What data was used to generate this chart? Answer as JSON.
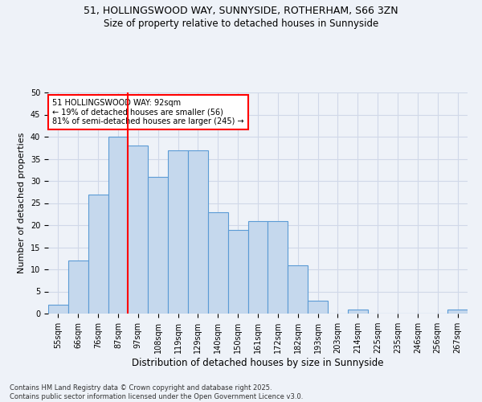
{
  "title_line1": "51, HOLLINGSWOOD WAY, SUNNYSIDE, ROTHERHAM, S66 3ZN",
  "title_line2": "Size of property relative to detached houses in Sunnyside",
  "xlabel": "Distribution of detached houses by size in Sunnyside",
  "ylabel": "Number of detached properties",
  "bin_labels": [
    "55sqm",
    "66sqm",
    "76sqm",
    "87sqm",
    "97sqm",
    "108sqm",
    "119sqm",
    "129sqm",
    "140sqm",
    "150sqm",
    "161sqm",
    "172sqm",
    "182sqm",
    "193sqm",
    "203sqm",
    "214sqm",
    "225sqm",
    "235sqm",
    "246sqm",
    "256sqm",
    "267sqm"
  ],
  "bar_values": [
    2,
    12,
    27,
    40,
    38,
    31,
    37,
    37,
    23,
    19,
    21,
    21,
    11,
    3,
    0,
    1,
    0,
    0,
    0,
    0,
    1
  ],
  "bar_color": "#c5d8ed",
  "bar_edgecolor": "#5b9bd5",
  "vline_x": 3.5,
  "vline_color": "red",
  "annotation_text": "51 HOLLINGSWOOD WAY: 92sqm\n← 19% of detached houses are smaller (56)\n81% of semi-detached houses are larger (245) →",
  "annotation_box_color": "white",
  "annotation_box_edgecolor": "red",
  "ylim": [
    0,
    50
  ],
  "yticks": [
    0,
    5,
    10,
    15,
    20,
    25,
    30,
    35,
    40,
    45,
    50
  ],
  "footnote": "Contains HM Land Registry data © Crown copyright and database right 2025.\nContains public sector information licensed under the Open Government Licence v3.0.",
  "grid_color": "#d0d8e8",
  "bg_color": "#eef2f8",
  "title_fontsize": 9,
  "subtitle_fontsize": 8.5,
  "ylabel_fontsize": 8,
  "xlabel_fontsize": 8.5,
  "tick_fontsize": 7,
  "footnote_fontsize": 6,
  "annot_fontsize": 7
}
